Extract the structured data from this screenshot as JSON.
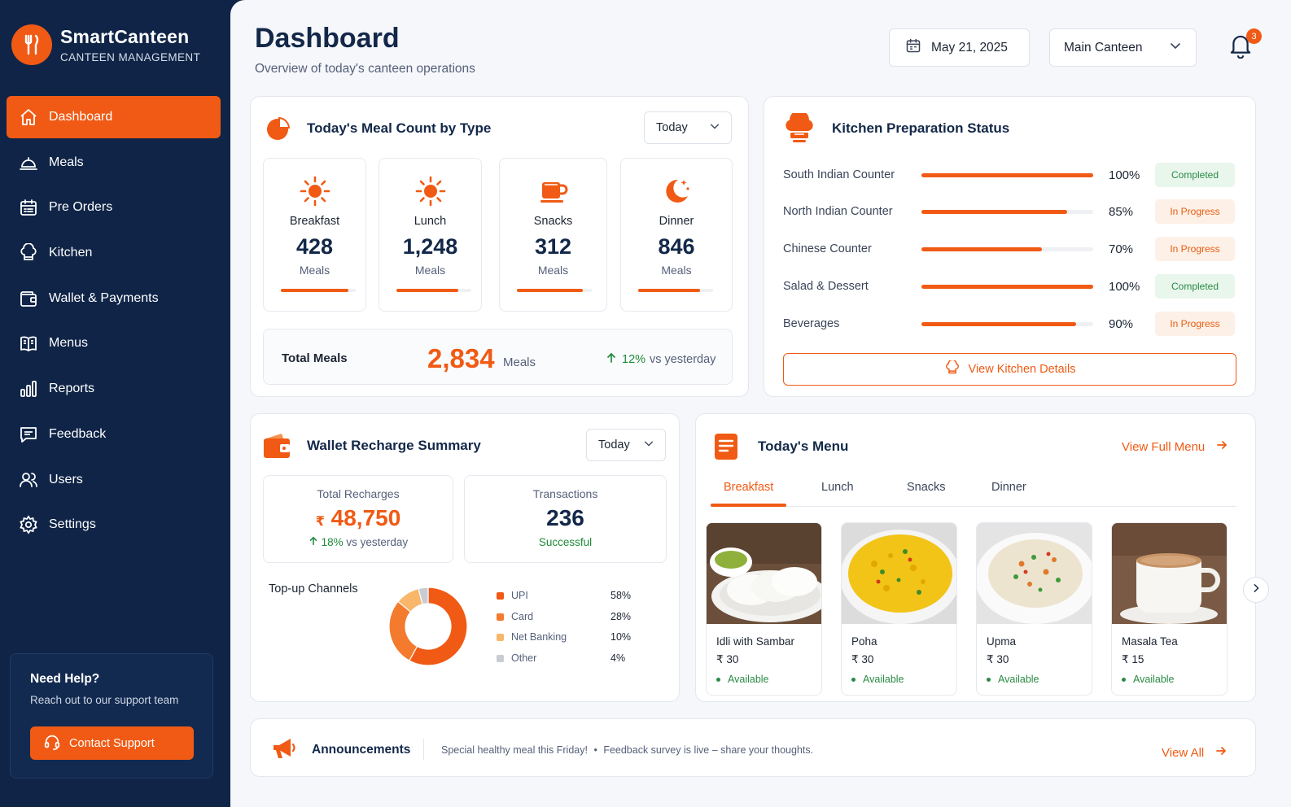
{
  "brand": {
    "name": "SmartCanteen",
    "subtitle": "CANTEEN MANAGEMENT"
  },
  "sidebar": {
    "items": [
      {
        "label": "Dashboard",
        "icon": "home-icon",
        "active": true
      },
      {
        "label": "Meals",
        "icon": "cloche-icon"
      },
      {
        "label": "Pre Orders",
        "icon": "calendar-list-icon"
      },
      {
        "label": "Kitchen",
        "icon": "chef-hat-icon"
      },
      {
        "label": "Wallet & Payments",
        "icon": "wallet-icon"
      },
      {
        "label": "Menus",
        "icon": "book-icon"
      },
      {
        "label": "Reports",
        "icon": "bar-chart-icon"
      },
      {
        "label": "Feedback",
        "icon": "message-icon"
      },
      {
        "label": "Users",
        "icon": "users-icon"
      },
      {
        "label": "Settings",
        "icon": "gear-icon"
      }
    ],
    "help": {
      "title": "Need Help?",
      "subtitle": "Reach out to our support team",
      "button": "Contact Support"
    }
  },
  "header": {
    "title": "Dashboard",
    "subtitle": "Overview of today's canteen operations",
    "date": "May 21, 2025",
    "canteen": "Main Canteen",
    "notification_count": "3"
  },
  "meal_count": {
    "title": "Today's Meal Count by Type",
    "filter": "Today",
    "meals": [
      {
        "name": "Breakfast",
        "value": "428",
        "unit": "Meals",
        "fill": 0.9
      },
      {
        "name": "Lunch",
        "value": "1,248",
        "unit": "Meals",
        "fill": 0.83
      },
      {
        "name": "Snacks",
        "value": "312",
        "unit": "Meals",
        "fill": 0.88
      },
      {
        "name": "Dinner",
        "value": "846",
        "unit": "Meals",
        "fill": 0.83
      }
    ],
    "total_label": "Total Meals",
    "total_value": "2,834",
    "total_unit": "Meals",
    "change_value": "12%",
    "change_text": "vs yesterday"
  },
  "kitchen": {
    "title": "Kitchen Preparation Status",
    "rows": [
      {
        "name": "South Indian Counter",
        "percent": 100,
        "percent_label": "100%",
        "status": "Completed"
      },
      {
        "name": "North Indian Counter",
        "percent": 85,
        "percent_label": "85%",
        "status": "In Progress"
      },
      {
        "name": "Chinese Counter",
        "percent": 70,
        "percent_label": "70%",
        "status": "In Progress"
      },
      {
        "name": "Salad & Dessert",
        "percent": 100,
        "percent_label": "100%",
        "status": "Completed"
      },
      {
        "name": "Beverages",
        "percent": 90,
        "percent_label": "90%",
        "status": "In Progress"
      }
    ],
    "button": "View Kitchen Details"
  },
  "wallet": {
    "title": "Wallet Recharge Summary",
    "filter": "Today",
    "total_label": "Total Recharges",
    "currency": "₹",
    "total_value": "48,750",
    "change_value": "18%",
    "change_text": "vs yesterday",
    "transactions_label": "Transactions",
    "transactions_value": "236",
    "transactions_status": "Successful",
    "channels_title": "Top-up Channels",
    "channels": [
      {
        "name": "UPI",
        "percent_label": "58%",
        "value": 58,
        "color": "#f05a14"
      },
      {
        "name": "Card",
        "percent_label": "28%",
        "value": 28,
        "color": "#f47a2e"
      },
      {
        "name": "Net Banking",
        "percent_label": "10%",
        "value": 10,
        "color": "#f8b76a"
      },
      {
        "name": "Other",
        "percent_label": "4%",
        "value": 4,
        "color": "#c9ccd3"
      }
    ]
  },
  "menu": {
    "title": "Today's Menu",
    "link": "View Full Menu",
    "tabs": [
      "Breakfast",
      "Lunch",
      "Snacks",
      "Dinner"
    ],
    "items": [
      {
        "name": "Idli with Sambar",
        "price": "₹ 30",
        "status": "Available"
      },
      {
        "name": "Poha",
        "price": "₹ 30",
        "status": "Available"
      },
      {
        "name": "Upma",
        "price": "₹ 30",
        "status": "Available"
      },
      {
        "name": "Masala Tea",
        "price": "₹ 15",
        "status": "Available"
      }
    ]
  },
  "announcements": {
    "title": "Announcements",
    "items": [
      "Special healthy meal this Friday!",
      "•",
      "Feedback survey is live – share your thoughts."
    ],
    "link": "View All"
  },
  "colors": {
    "accent": "#f05a14",
    "sidebar": "#0f2447",
    "success": "#2a8a45"
  }
}
